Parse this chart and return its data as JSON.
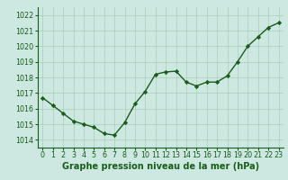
{
  "x": [
    0,
    1,
    2,
    3,
    4,
    5,
    6,
    7,
    8,
    9,
    10,
    11,
    12,
    13,
    14,
    15,
    16,
    17,
    18,
    19,
    20,
    21,
    22,
    23
  ],
  "y": [
    1016.7,
    1016.2,
    1015.7,
    1015.2,
    1015.0,
    1014.8,
    1014.4,
    1014.3,
    1015.1,
    1016.3,
    1017.1,
    1018.2,
    1018.35,
    1018.4,
    1017.7,
    1017.45,
    1017.7,
    1017.7,
    1018.1,
    1019.0,
    1020.0,
    1020.6,
    1021.2,
    1021.5
  ],
  "line_color": "#1a5c1a",
  "marker": "D",
  "marker_size": 2.2,
  "bg_color": "#cce8e0",
  "grid_color": "#aaccbb",
  "xlabel": "Graphe pression niveau de la mer (hPa)",
  "xlabel_fontsize": 7.0,
  "tick_fontsize": 5.8,
  "ylim": [
    1013.5,
    1022.5
  ],
  "yticks": [
    1014,
    1015,
    1016,
    1017,
    1018,
    1019,
    1020,
    1021,
    1022
  ],
  "xticks": [
    0,
    1,
    2,
    3,
    4,
    5,
    6,
    7,
    8,
    9,
    10,
    11,
    12,
    13,
    14,
    15,
    16,
    17,
    18,
    19,
    20,
    21,
    22,
    23
  ],
  "line_width": 1.0,
  "text_color": "#1a5c1a"
}
